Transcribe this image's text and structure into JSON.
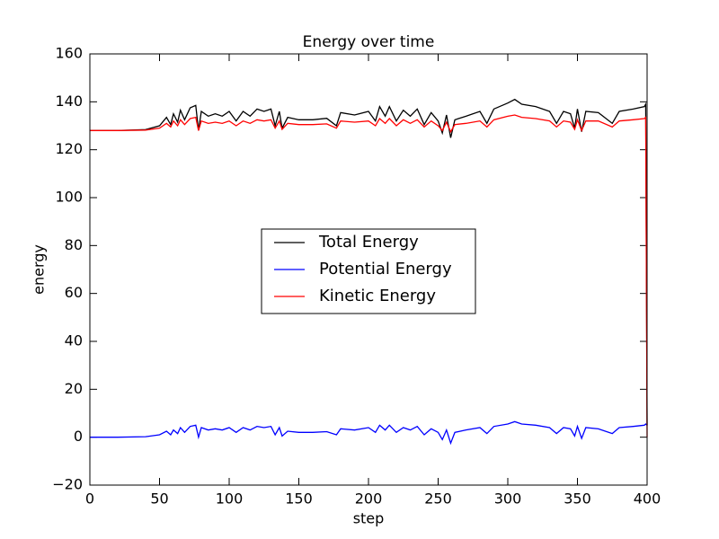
{
  "chart_data": {
    "type": "line",
    "title": "Energy over time",
    "xlabel": "step",
    "ylabel": "energy",
    "x": [
      0,
      20,
      40,
      50,
      55,
      58,
      60,
      63,
      65,
      68,
      72,
      76,
      78,
      80,
      85,
      90,
      95,
      100,
      105,
      110,
      115,
      120,
      125,
      130,
      133,
      136,
      138,
      142,
      150,
      160,
      170,
      177,
      180,
      190,
      200,
      205,
      208,
      212,
      215,
      220,
      225,
      230,
      235,
      240,
      245,
      250,
      253,
      256,
      259,
      262,
      270,
      280,
      285,
      290,
      300,
      305,
      310,
      320,
      330,
      335,
      340,
      345,
      348,
      350,
      353,
      356,
      365,
      375,
      380,
      390,
      398,
      399,
      400
    ],
    "series": [
      {
        "name": "Total Energy",
        "color": "#000000",
        "values": [
          128,
          128,
          128.4,
          130,
          133.5,
          130.5,
          135,
          131.5,
          136.5,
          132.5,
          137.5,
          138.5,
          128,
          136,
          134,
          135,
          134,
          136,
          132,
          136,
          134,
          137,
          136,
          137,
          130,
          136,
          129,
          133.5,
          132.5,
          132.5,
          133.1,
          130,
          135.5,
          134.5,
          136,
          132,
          138,
          134,
          138,
          132,
          136.5,
          134,
          137,
          130.5,
          135.5,
          132,
          127,
          134.5,
          125,
          132.5,
          134,
          136,
          131,
          137,
          139.5,
          141,
          139,
          138,
          136,
          131,
          136,
          135,
          129,
          137,
          127.5,
          136,
          135.5,
          131,
          136,
          137,
          138,
          139,
          5
        ]
      },
      {
        "name": "Potential Energy",
        "color": "#0000ff",
        "values": [
          0,
          0,
          0.2,
          1,
          2.5,
          1,
          3,
          1.5,
          4,
          2,
          4.5,
          5,
          0,
          4,
          3,
          3.5,
          3,
          4,
          2,
          4,
          3,
          4.5,
          4,
          4.5,
          1,
          4,
          0.5,
          2.5,
          2,
          2,
          2.3,
          1,
          3.5,
          3,
          4,
          2,
          5,
          3,
          5,
          2,
          4,
          3,
          4.5,
          1,
          3.5,
          2,
          -1,
          3,
          -2.5,
          2,
          3,
          4,
          1.5,
          4.5,
          5.5,
          6.5,
          5.5,
          5,
          4,
          1.5,
          4,
          3.5,
          0.5,
          4.5,
          -0.5,
          4,
          3.5,
          1.5,
          4,
          4.5,
          5,
          5.5,
          5
        ]
      },
      {
        "name": "Kinetic Energy",
        "color": "#ff0000",
        "values": [
          128,
          128,
          128.2,
          129,
          131,
          129.5,
          132,
          130,
          132.5,
          130.5,
          133,
          133.5,
          128,
          132,
          131,
          131.5,
          131,
          132,
          130,
          132,
          131,
          132.5,
          132,
          132.5,
          129,
          132,
          128.5,
          131,
          130.5,
          130.5,
          130.8,
          129,
          132,
          131.5,
          132,
          130,
          133,
          131,
          133,
          130,
          132.5,
          131,
          132.5,
          129.5,
          132,
          130,
          128,
          131.5,
          127.5,
          130.5,
          131,
          132,
          129.5,
          132.5,
          134,
          134.5,
          133.5,
          133,
          132,
          129.5,
          132,
          131.5,
          128.5,
          132.5,
          128,
          132,
          132,
          129.5,
          132,
          132.5,
          133,
          133.5,
          0
        ]
      }
    ],
    "xlim": [
      0,
      400
    ],
    "xticks": [
      0,
      50,
      100,
      150,
      200,
      250,
      300,
      350,
      400
    ],
    "ylim": [
      -20,
      160
    ],
    "yticks": [
      {
        "value": -20,
        "label": "−20"
      },
      0,
      20,
      40,
      60,
      80,
      100,
      120,
      140,
      160
    ],
    "legend": "center"
  }
}
